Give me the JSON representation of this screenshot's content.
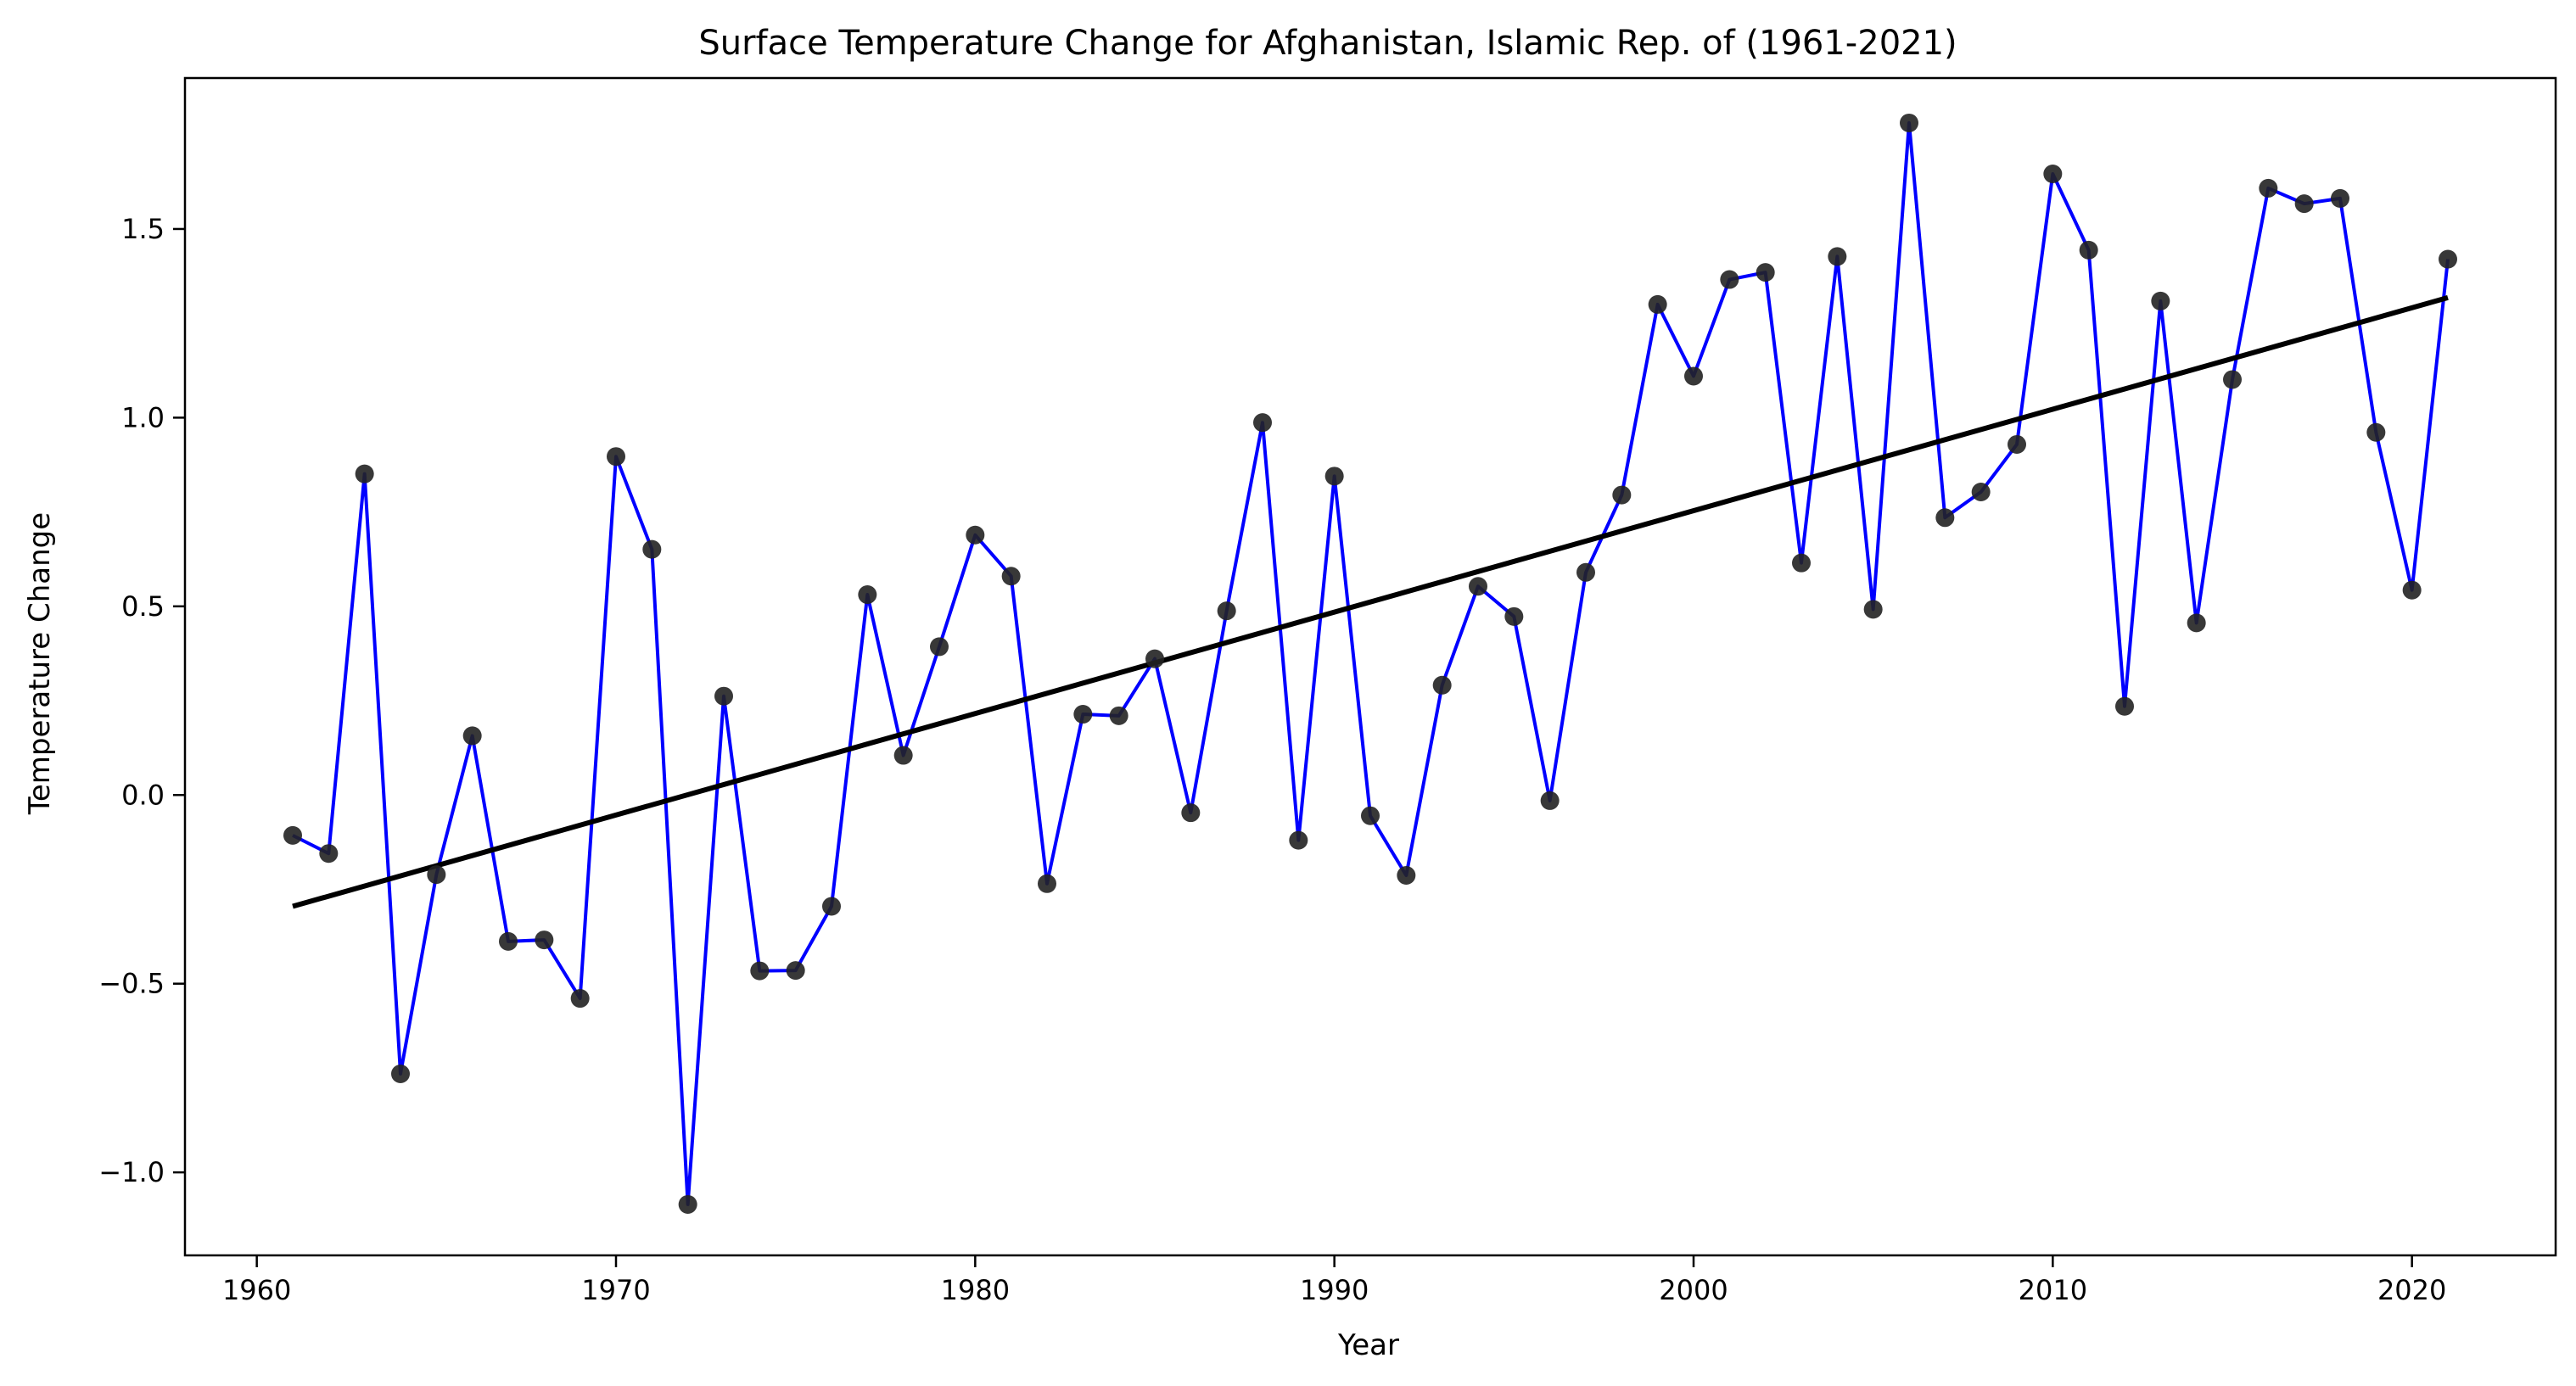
{
  "chart_data": {
    "type": "line",
    "title": "Surface Temperature Change for Afghanistan, Islamic Rep. of (1961-2021)",
    "xlabel": "Year",
    "ylabel": "Temperature Change",
    "xlim": [
      1958,
      2024
    ],
    "ylim": [
      -1.22,
      1.9
    ],
    "xticks": [
      1960,
      1970,
      1980,
      1990,
      2000,
      2010,
      2020
    ],
    "yticks": [
      -1.0,
      -0.5,
      0.0,
      0.5,
      1.0,
      1.5
    ],
    "ytick_labels": [
      "−1.0",
      "−0.5",
      "0.0",
      "0.5",
      "1.0",
      "1.5"
    ],
    "grid": false,
    "colors": {
      "line": "#0000ff",
      "marker": "#222222",
      "trend": "#000000"
    },
    "series": [
      {
        "x": [
          1961,
          1962,
          1963,
          1964,
          1965,
          1966,
          1967,
          1968,
          1969,
          1970,
          1971,
          1972,
          1973,
          1974,
          1975,
          1976,
          1977,
          1978,
          1979,
          1980,
          1981,
          1982,
          1983,
          1984,
          1985,
          1986,
          1987,
          1988,
          1989,
          1990,
          1991,
          1992,
          1993,
          1994,
          1995,
          1996,
          1997,
          1998,
          1999,
          2000,
          2001,
          2002,
          2003,
          2004,
          2005,
          2006,
          2007,
          2008,
          2009,
          2010,
          2011,
          2012,
          2013,
          2014,
          2015,
          2016,
          2017,
          2018,
          2019,
          2020,
          2021
        ],
        "values": [
          -0.107,
          -0.155,
          0.851,
          -0.739,
          -0.211,
          0.157,
          -0.388,
          -0.384,
          -0.539,
          0.897,
          0.651,
          -1.085,
          0.262,
          -0.466,
          -0.465,
          -0.295,
          0.531,
          0.105,
          0.393,
          0.689,
          0.58,
          -0.235,
          0.214,
          0.21,
          0.361,
          -0.047,
          0.488,
          0.987,
          -0.12,
          0.845,
          -0.055,
          -0.213,
          0.291,
          0.553,
          0.473,
          -0.015,
          0.59,
          0.795,
          1.3,
          1.11,
          1.366,
          1.385,
          0.615,
          1.427,
          0.492,
          1.781,
          0.735,
          0.803,
          0.929,
          1.646,
          1.444,
          0.235,
          1.309,
          0.456,
          1.101,
          1.608,
          1.567,
          1.581,
          0.961,
          0.543,
          1.42
        ]
      }
    ],
    "trendline": {
      "x": [
        1961,
        2021
      ],
      "values": [
        -0.295,
        1.318
      ]
    }
  }
}
